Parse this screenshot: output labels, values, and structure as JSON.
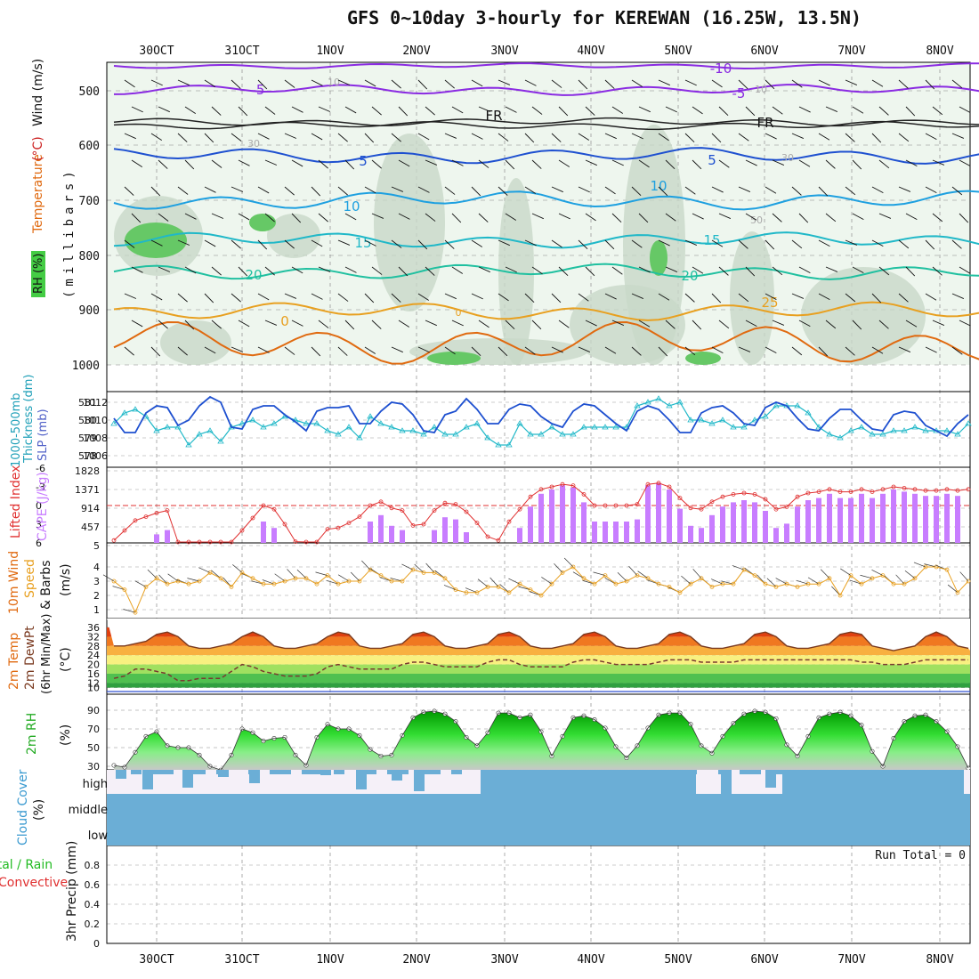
{
  "title": "GFS 0~10day 3-hourly for KEREWAN (16.25W, 13.5N)",
  "dates": [
    "30OCT",
    "31OCT",
    "1NOV",
    "2NOV",
    "3NOV",
    "4NOV",
    "5NOV",
    "6NOV",
    "7NOV",
    "8NOV"
  ],
  "colors": {
    "purple": "#8a2be2",
    "blue": "#1e50d0",
    "cyan": "#20b8c8",
    "green": "#22c55e",
    "orange": "#e8a020",
    "red": "#e03030",
    "cloud": "#6baed6",
    "bar": "#c87dff"
  },
  "panels": {
    "upper": {
      "ylabel_parts": [
        "RH (%)",
        "Temperature",
        "(°C)",
        "Wind (m/s)"
      ],
      "ylabel2": "(millibars)",
      "yticks": [
        "500",
        "600",
        "700",
        "800",
        "900",
        "1000"
      ],
      "contour_labels": [
        "-10",
        "-5",
        "-5",
        "FR",
        "FR",
        "5",
        "5",
        "10",
        "10",
        "15",
        "15",
        "20",
        "20",
        "25",
        "0",
        "0",
        "10",
        "10",
        "30",
        "30",
        "50"
      ]
    },
    "slp": {
      "ylabel_left": "1000-500mb",
      "ylabel_left2": "Thickness (dm)",
      "ylabel_right": "SLP (mb)",
      "left_ticks": [
        "581",
        "580",
        "579",
        "578"
      ],
      "right_ticks": [
        "1012",
        "1010",
        "1008",
        "1006"
      ]
    },
    "cape": {
      "ylabel_left": "Lifted Index",
      "ylabel_right": "CAPE (J/kg)",
      "left_ticks": [
        "-6",
        "-3",
        "0",
        "3",
        "6"
      ],
      "right_ticks": [
        "1828",
        "1371",
        "914",
        "457",
        "5"
      ]
    },
    "wind": {
      "ylabel_a": "10m Wind",
      "ylabel_b": "Speed",
      "ylabel_c": "& Barbs",
      "ylabel_d": "(m/s)",
      "ticks": [
        "4",
        "3",
        "2",
        "1"
      ]
    },
    "temp": {
      "ylabel_a": "2m Temp",
      "ylabel_b": "2m DewPt",
      "ylabel_c": "(6hr Min/Max)",
      "ylabel_d": "(°C)",
      "ticks": [
        "36",
        "32",
        "28",
        "24",
        "20",
        "16",
        "12",
        "10"
      ]
    },
    "rh": {
      "ylabel_a": "2m RH",
      "ylabel_b": "(%)",
      "ticks": [
        "90",
        "70",
        "50",
        "30"
      ]
    },
    "cloud": {
      "ylabel_a": "Cloud Cover",
      "ylabel_b": "(%)",
      "levels": [
        "high",
        "middle",
        "low"
      ]
    },
    "precip": {
      "ylabel_a": "Total / Rain",
      "ylabel_b": "Convective",
      "ylabel_c": "3hr Precip (mm)",
      "ticks": [
        "0.8",
        "0.6",
        "0.4",
        "0.2",
        "0"
      ],
      "run_total": "Run Total = 0"
    }
  },
  "chart_data": {
    "type": "line",
    "x_interval_hours": 3,
    "cape_bars": [
      0,
      0,
      0,
      0,
      0,
      0,
      0,
      0,
      0,
      0,
      0,
      0,
      0,
      0,
      0,
      0,
      0,
      0,
      0,
      0,
      0,
      0,
      0,
      0,
      0,
      0,
      0,
      0,
      0,
      200,
      0,
      0,
      0,
      0,
      0,
      0,
      0,
      0,
      0,
      0,
      0,
      0,
      0,
      0,
      0,
      0,
      0,
      0,
      0,
      0,
      0,
      0,
      0,
      0,
      0,
      0,
      0,
      0,
      0,
      0,
      0,
      0,
      0,
      0,
      0,
      0,
      0,
      0,
      0,
      0,
      0,
      0,
      0,
      0,
      0,
      0,
      0,
      0,
      0,
      0,
      0,
      0,
      0,
      0,
      0,
      0,
      0,
      0,
      0,
      0,
      0,
      0,
      0,
      0,
      0,
      0,
      0,
      0,
      0,
      0,
      0,
      0,
      0,
      0,
      0,
      0,
      0,
      0,
      0,
      0,
      0,
      0,
      0,
      0,
      0,
      0,
      0,
      0,
      0,
      0,
      0,
      0,
      0,
      0,
      0,
      0,
      0,
      0,
      0,
      0
    ],
    "thickness": [
      579.8,
      580.4,
      580.6,
      580.2,
      579.4,
      579.6,
      579.6,
      578.6,
      579.2,
      579.4,
      578.8,
      579.6,
      579.8,
      580.0,
      579.6,
      579.8,
      580.2,
      580.0,
      579.8,
      579.8,
      579.4,
      579.2,
      579.6,
      579.0,
      580.2,
      579.8,
      579.6,
      579.4,
      579.4,
      579.2,
      579.6,
      579.2,
      579.2,
      579.6,
      579.8,
      579.0,
      578.6,
      578.6,
      579.8,
      579.2,
      579.2,
      579.6,
      579.2,
      579.2,
      579.6,
      579.6,
      579.6,
      579.6,
      579.6,
      580.8,
      581.0,
      581.2,
      580.8,
      581.0,
      580.0,
      580.0,
      579.8,
      580.0,
      579.6,
      579.6,
      580.0,
      580.2,
      580.8,
      580.8,
      580.8,
      580.4,
      579.6,
      579.2,
      579.0,
      579.4,
      579.6,
      579.2,
      579.2,
      579.4,
      579.4,
      579.6,
      579.4,
      579.4,
      579.4,
      579.2,
      579.8,
      580.0,
      580.2,
      579.8,
      579.8,
      579.2,
      579.2,
      579.4,
      579.8,
      579.8,
      579.2,
      579.2,
      578.6,
      579.0,
      579.4,
      579.0,
      579.2,
      579.6,
      579.0,
      578.8,
      578.6,
      578.0,
      577.6
    ],
    "slp": [
      1010.2,
      1008.6,
      1008.6,
      1010.8,
      1011.6,
      1011.4,
      1009.4,
      1010.0,
      1011.6,
      1012.6,
      1012.0,
      1009.2,
      1009.0,
      1011.2,
      1011.6,
      1011.6,
      1010.6,
      1009.8,
      1008.8,
      1011.0,
      1011.4,
      1011.4,
      1011.6,
      1009.6,
      1009.6,
      1011.0,
      1012.0,
      1011.8,
      1010.6,
      1008.8,
      1008.6,
      1010.6,
      1011.0,
      1012.4,
      1011.2,
      1009.6,
      1009.6,
      1011.2,
      1011.8,
      1011.6,
      1010.4,
      1009.6,
      1009.2,
      1011.0,
      1011.8,
      1011.6,
      1010.6,
      1009.6,
      1008.8,
      1011.0,
      1011.6,
      1011.2,
      1010.0,
      1008.6,
      1008.6,
      1010.8,
      1011.4,
      1011.6,
      1010.8,
      1009.6,
      1009.4,
      1011.4,
      1012.0,
      1011.6,
      1010.2,
      1009.0,
      1008.8,
      1010.2,
      1011.2,
      1011.2,
      1010.0,
      1009.0,
      1008.8,
      1010.6,
      1011.0,
      1010.8,
      1009.4,
      1008.8,
      1008.2,
      1009.6,
      1010.6,
      1011.0,
      1009.4,
      1008.2,
      1008.6,
      1009.6,
      1010.0,
      1009.8,
      1008.4,
      1006.6,
      1007.2,
      1009.2,
      1009.6,
      1009.2,
      1008.4,
      1007.4,
      1008.4,
      1009.4,
      1009.6,
      1008.8,
      1009.0,
      1009.4,
      1009.4
    ],
    "lifted_index": [
      5.6,
      4.0,
      2.4,
      1.8,
      1.2,
      0.8,
      6.0,
      6.0,
      6.0,
      6.0,
      6.0,
      6.0,
      4.0,
      2.0,
      0.0,
      0.6,
      3.0,
      5.8,
      6.0,
      6.0,
      3.8,
      3.6,
      2.8,
      1.8,
      0.0,
      -0.6,
      0.4,
      0.8,
      3.2,
      3.0,
      0.8,
      -0.4,
      -0.2,
      1.0,
      2.8,
      5.0,
      5.6,
      2.6,
      0.6,
      -1.4,
      -2.6,
      -3.0,
      -3.4,
      -3.2,
      -1.8,
      0.0,
      0.0,
      0.0,
      0.0,
      -0.2,
      -3.4,
      -3.6,
      -3.0,
      -1.2,
      0.4,
      0.6,
      -0.6,
      -1.4,
      -1.8,
      -2.0,
      -1.8,
      -1.0,
      0.6,
      0.2,
      -1.4,
      -2.0,
      -2.2,
      -2.6,
      -2.2,
      -2.2,
      -2.6,
      -2.2,
      -2.6,
      -3.0,
      -2.8,
      -2.6,
      -2.4,
      -2.4,
      -2.6,
      -2.4,
      -2.6,
      -2.4,
      -2.2,
      -2.6,
      -3.0,
      -2.6,
      -2.0,
      -0.8,
      0.6,
      1.2,
      -1.0,
      -2.4,
      -2.8,
      -2.8,
      -1.6,
      -0.6,
      0.2,
      -1.2,
      -1.6,
      -2.0,
      -2.0,
      -1.8,
      -2.0,
      -2.4,
      -1.6,
      -1.6,
      -2.0,
      -2.2,
      -1.8,
      -2.6
    ],
    "cape_values": [
      0,
      0,
      0,
      0,
      0,
      0,
      0,
      0,
      0,
      0,
      0,
      0,
      0,
      0,
      0,
      0,
      0,
      200,
      0,
      0,
      0,
      0,
      0,
      0,
      0,
      0,
      0,
      0,
      0,
      0,
      0,
      0,
      0,
      0,
      0,
      0,
      0,
      0,
      0,
      0,
      0,
      0,
      0,
      0,
      0,
      0,
      0,
      0,
      0,
      0,
      0,
      0,
      0,
      0,
      0,
      0,
      0,
      0,
      0,
      0,
      0,
      0,
      0,
      0,
      0,
      0,
      0,
      0,
      0,
      0,
      0,
      0,
      0,
      0,
      0,
      0,
      0,
      0,
      0,
      0,
      0,
      0,
      0,
      0,
      0,
      0,
      0,
      0,
      0,
      0,
      0,
      0,
      0,
      0,
      0,
      0,
      0,
      0,
      0,
      0,
      0,
      0,
      0,
      0,
      0,
      0,
      0,
      0
    ],
    "wind_speed": [
      3.0,
      2.4,
      0.8,
      2.6,
      3.2,
      2.8,
      3.0,
      2.8,
      3.0,
      3.6,
      3.2,
      2.6,
      3.6,
      3.2,
      2.8,
      2.8,
      3.0,
      3.2,
      3.2,
      2.8,
      3.4,
      2.8,
      3.0,
      3.0,
      3.8,
      3.4,
      3.0,
      3.0,
      3.8,
      3.6,
      3.6,
      3.2,
      2.4,
      2.2,
      2.2,
      2.6,
      2.6,
      2.2,
      2.8,
      2.4,
      2.0,
      2.8,
      3.6,
      4.0,
      3.2,
      2.8,
      3.4,
      2.8,
      3.0,
      3.4,
      3.2,
      2.8,
      2.6,
      2.2,
      2.8,
      3.2,
      2.6,
      2.8,
      2.8,
      3.8,
      3.4,
      2.8,
      2.6,
      2.8,
      2.6,
      2.8,
      2.8,
      3.2,
      2.0,
      3.4,
      2.8,
      3.2,
      3.4,
      2.8,
      2.8,
      3.2,
      4.0,
      4.0,
      3.8,
      2.2,
      3.0,
      2.4,
      2.6,
      2.8,
      3.0,
      3.2,
      3.6,
      3.8,
      2.0,
      2.2,
      3.6,
      3.2,
      2.6,
      2.2,
      2.0,
      3.0,
      3.8,
      2.8,
      2.6,
      3.0,
      2.8,
      2.6,
      2.2,
      3.0,
      2.4,
      2.6,
      2.8,
      2.6,
      3.0
    ],
    "temp": [
      28,
      28,
      29,
      30,
      33,
      34,
      32,
      28,
      27,
      27,
      28,
      29,
      32,
      34,
      32,
      28,
      27,
      27,
      28,
      29,
      32,
      34,
      33,
      28,
      27,
      27,
      28,
      29,
      33,
      34,
      32,
      28,
      27,
      27,
      28,
      29,
      33,
      34,
      32,
      28,
      27,
      27,
      28,
      29,
      33,
      34,
      32,
      28,
      27,
      27,
      28,
      29,
      33,
      34,
      32,
      28,
      27,
      27,
      28,
      29,
      33,
      34,
      32,
      28,
      27,
      27,
      28,
      29,
      33,
      34,
      33,
      28,
      27,
      26,
      27,
      28,
      32,
      34,
      32,
      28,
      27,
      26,
      27,
      28,
      32,
      34,
      32,
      27,
      26,
      26,
      27,
      28,
      33,
      34,
      32,
      28,
      27,
      26,
      26,
      27,
      32,
      34,
      30,
      27,
      26
    ],
    "dewpoint": [
      14,
      15,
      18,
      18,
      17,
      16,
      13,
      13,
      14,
      14,
      14,
      17,
      20,
      19,
      17,
      16,
      15,
      15,
      15,
      16,
      19,
      20,
      19,
      18,
      18,
      18,
      18,
      20,
      21,
      21,
      20,
      19,
      19,
      19,
      19,
      21,
      22,
      22,
      20,
      19,
      19,
      19,
      19,
      21,
      22,
      22,
      21,
      20,
      20,
      20,
      20,
      21,
      22,
      22,
      22,
      21,
      21,
      21,
      21,
      22,
      22,
      22,
      22,
      22,
      22,
      22,
      22,
      22,
      22,
      22,
      21,
      21,
      20,
      20,
      20,
      21,
      22,
      22,
      22,
      22,
      22,
      22,
      22,
      22,
      22,
      22,
      21,
      21,
      21,
      20,
      17,
      18,
      20,
      21,
      21,
      22,
      22,
      22,
      22,
      22,
      22,
      21,
      21,
      21,
      20
    ],
    "rh": [
      31,
      29,
      45,
      62,
      67,
      52,
      50,
      50,
      42,
      30,
      26,
      42,
      70,
      66,
      57,
      60,
      61,
      42,
      31,
      61,
      75,
      70,
      70,
      63,
      48,
      41,
      42,
      63,
      82,
      88,
      89,
      86,
      78,
      61,
      52,
      66,
      87,
      87,
      82,
      85,
      67,
      41,
      62,
      82,
      84,
      80,
      71,
      51,
      39,
      52,
      71,
      85,
      87,
      87,
      75,
      52,
      44,
      62,
      76,
      86,
      89,
      88,
      81,
      53,
      41,
      62,
      82,
      86,
      88,
      84,
      74,
      46,
      30,
      60,
      78,
      84,
      85,
      78,
      67,
      51,
      28,
      62,
      83,
      86,
      86,
      74,
      63,
      48,
      33,
      50,
      76,
      85,
      88,
      85,
      72,
      53,
      35,
      50,
      70,
      84,
      85,
      86,
      87
    ],
    "cloud_high_missing": [
      0,
      0,
      0,
      0,
      0,
      0,
      0,
      0,
      0,
      0,
      0,
      0,
      0,
      0,
      0,
      0,
      0,
      0,
      0,
      0,
      0,
      0,
      0,
      0,
      0,
      0,
      0,
      0,
      0,
      0,
      0,
      0,
      0,
      0,
      0,
      0,
      0,
      0,
      0,
      0,
      0,
      0,
      0,
      0,
      0,
      0,
      0,
      0,
      0,
      0,
      0,
      0,
      0,
      0,
      0,
      0,
      0,
      0,
      0,
      0,
      0,
      0,
      0,
      0,
      0,
      0,
      0,
      0,
      0,
      0,
      0,
      0,
      0,
      0,
      0,
      0,
      0,
      0,
      0,
      0,
      0,
      0,
      0,
      0,
      0,
      0,
      0,
      0,
      0,
      0,
      0,
      0,
      0,
      0,
      0,
      0,
      0,
      0,
      0,
      0,
      0,
      0,
      0,
      0,
      0
    ],
    "precip": [],
    "run_total": 0
  }
}
